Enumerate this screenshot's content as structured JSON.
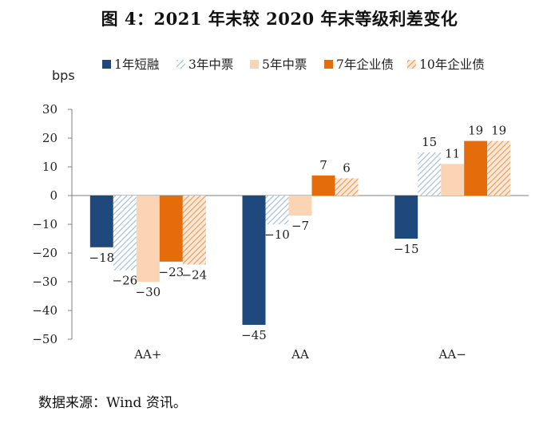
{
  "title": "图 4：2021 年末较 2020 年末等级利差变化",
  "source": "数据来源：Wind 资讯。",
  "chart_data": {
    "type": "bar",
    "title": "图 4：2021 年末较 2020 年末等级利差变化",
    "ylabel": "bps",
    "xlabel": "",
    "ylim": [
      -50,
      30
    ],
    "yticks": [
      30,
      20,
      10,
      0,
      -10,
      -20,
      -30,
      -40,
      -50
    ],
    "ytick_labels": [
      "30",
      "20",
      "10",
      "0",
      "−10",
      "−20",
      "−30",
      "−40",
      "−50"
    ],
    "categories": [
      "AA+",
      "AA",
      "AA−"
    ],
    "legend_position": "top",
    "series": [
      {
        "name": "1年短融",
        "values": [
          -18,
          -45,
          -15
        ],
        "labels": [
          "−18",
          "−45",
          "−15"
        ],
        "color": "#1f497d",
        "style": "solid"
      },
      {
        "name": "3年中票",
        "values": [
          -26,
          -10,
          15
        ],
        "labels": [
          "−26",
          "−10",
          "15"
        ],
        "color": "#b8cde4",
        "style": "hatch-light"
      },
      {
        "name": "5年中票",
        "values": [
          -30,
          -7,
          11
        ],
        "labels": [
          "−30",
          "−7",
          "11"
        ],
        "color": "#fbd4b4",
        "style": "solid"
      },
      {
        "name": "7年企业债",
        "values": [
          -23,
          7,
          19
        ],
        "labels": [
          "−23",
          "7",
          "19"
        ],
        "color": "#e46c0a",
        "style": "solid"
      },
      {
        "name": "10年企业债",
        "values": [
          -24,
          6,
          19
        ],
        "labels": [
          "−24",
          "6",
          "19"
        ],
        "color": "#f2b482",
        "style": "hatch-orange"
      }
    ]
  }
}
